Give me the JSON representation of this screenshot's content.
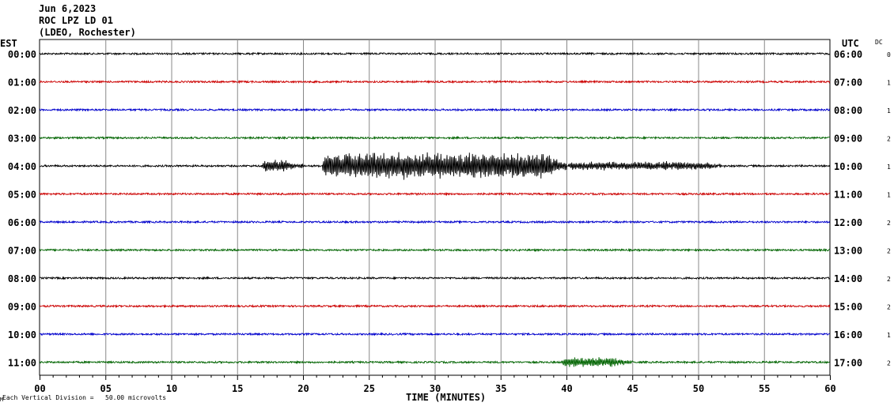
{
  "header": {
    "date": "Jun 6,2023",
    "station": "ROC LPZ LD 01",
    "network": "(LDEO, Rochester)"
  },
  "left_axis_title": "EST",
  "right_axis_title": "UTC",
  "dc_title": "DC",
  "footer_mark": "M",
  "footer_note": "Each Vertical Division =   50.00 microvolts",
  "colors": {
    "black": "#000000",
    "red": "#cc0000",
    "blue": "#0000cc",
    "green": "#006400",
    "grid": "#888888"
  },
  "chart_data": {
    "type": "line",
    "title": "ROC LPZ LD 01",
    "xlabel": "TIME (MINUTES)",
    "xlim": [
      0,
      60
    ],
    "x_ticks": [
      "00",
      "05",
      "10",
      "15",
      "20",
      "25",
      "30",
      "35",
      "40",
      "45",
      "50",
      "55",
      "60"
    ],
    "y_unit_note": "Each Vertical Division = 50.00 microvolts",
    "rows": [
      {
        "est": "00:00",
        "utc": "06:00",
        "dc": "0",
        "color": "black"
      },
      {
        "est": "01:00",
        "utc": "07:00",
        "dc": "1",
        "color": "red"
      },
      {
        "est": "02:00",
        "utc": "08:00",
        "dc": "1",
        "color": "blue"
      },
      {
        "est": "03:00",
        "utc": "09:00",
        "dc": "2",
        "color": "green"
      },
      {
        "est": "04:00",
        "utc": "10:00",
        "dc": "1",
        "color": "black",
        "events": [
          {
            "start": 16.8,
            "end": 20.0,
            "amp": 0.45
          },
          {
            "start": 21.4,
            "end": 40.0,
            "amp": 1.0
          },
          {
            "start": 40.0,
            "end": 52.0,
            "amp": 0.3
          }
        ]
      },
      {
        "est": "05:00",
        "utc": "11:00",
        "dc": "1",
        "color": "red"
      },
      {
        "est": "06:00",
        "utc": "12:00",
        "dc": "2",
        "color": "blue"
      },
      {
        "est": "07:00",
        "utc": "13:00",
        "dc": "2",
        "color": "green"
      },
      {
        "est": "08:00",
        "utc": "14:00",
        "dc": "2",
        "color": "black"
      },
      {
        "est": "09:00",
        "utc": "15:00",
        "dc": "2",
        "color": "red"
      },
      {
        "est": "10:00",
        "utc": "16:00",
        "dc": "1",
        "color": "blue"
      },
      {
        "est": "11:00",
        "utc": "17:00",
        "dc": "2",
        "color": "green",
        "events": [
          {
            "start": 39.5,
            "end": 45.0,
            "amp": 0.35
          }
        ]
      }
    ]
  }
}
